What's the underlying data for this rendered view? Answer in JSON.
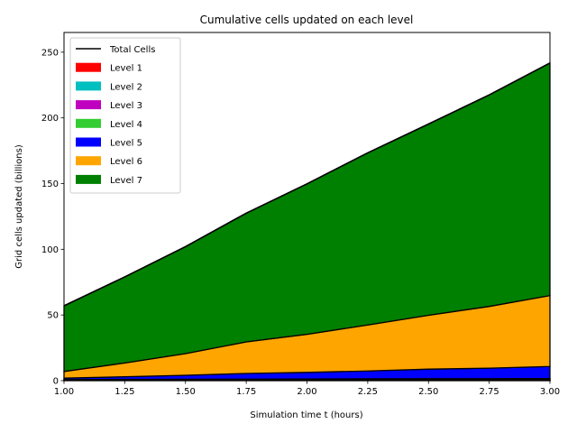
{
  "chart_data": {
    "type": "area",
    "title": "Cumulative cells updated on each level",
    "xlabel": "Simulation time t (hours)",
    "ylabel": "Grid cells updated (billions)",
    "xlim": [
      1.0,
      3.0
    ],
    "ylim": [
      0,
      265
    ],
    "xticks": [
      "1.00",
      "1.25",
      "1.50",
      "1.75",
      "2.00",
      "2.25",
      "2.50",
      "2.75",
      "3.00"
    ],
    "yticks": [
      "0",
      "50",
      "100",
      "150",
      "200",
      "250"
    ],
    "legend_position": "upper-left",
    "x": [
      1.0,
      1.25,
      1.5,
      1.75,
      2.0,
      2.25,
      2.5,
      2.75,
      3.0
    ],
    "series": [
      {
        "name": "Level 1",
        "color": "#ff0000",
        "values": [
          0.1,
          0.1,
          0.1,
          0.1,
          0.1,
          0.1,
          0.1,
          0.1,
          0.1
        ]
      },
      {
        "name": "Level 2",
        "color": "#00bfbf",
        "values": [
          0.2,
          0.2,
          0.2,
          0.2,
          0.2,
          0.2,
          0.2,
          0.2,
          0.2
        ]
      },
      {
        "name": "Level 3",
        "color": "#bf00bf",
        "values": [
          0.2,
          0.3,
          0.3,
          0.3,
          0.4,
          0.4,
          0.4,
          0.4,
          0.5
        ]
      },
      {
        "name": "Level 4",
        "color": "#32cd32",
        "values": [
          0.3,
          0.4,
          0.5,
          0.6,
          0.6,
          0.7,
          0.8,
          0.8,
          0.9
        ]
      },
      {
        "name": "Level 5",
        "color": "#0000ff",
        "values": [
          1.2,
          2.0,
          3.0,
          4.3,
          5.0,
          6.0,
          7.3,
          8.0,
          9.1
        ]
      },
      {
        "name": "Level 6",
        "color": "#ffa500",
        "values": [
          5.0,
          10.5,
          16.5,
          24.0,
          29.0,
          35.0,
          41.0,
          47.0,
          54.0
        ]
      },
      {
        "name": "Level 7",
        "color": "#008000",
        "values": [
          50.0,
          65.5,
          81.5,
          98.0,
          114.5,
          131.0,
          145.5,
          161.0,
          177.0
        ]
      }
    ],
    "total": {
      "name": "Total Cells",
      "color": "#000000",
      "values": [
        57.0,
        79.0,
        102.0,
        127.5,
        149.8,
        173.4,
        195.3,
        217.5,
        241.8
      ]
    }
  }
}
